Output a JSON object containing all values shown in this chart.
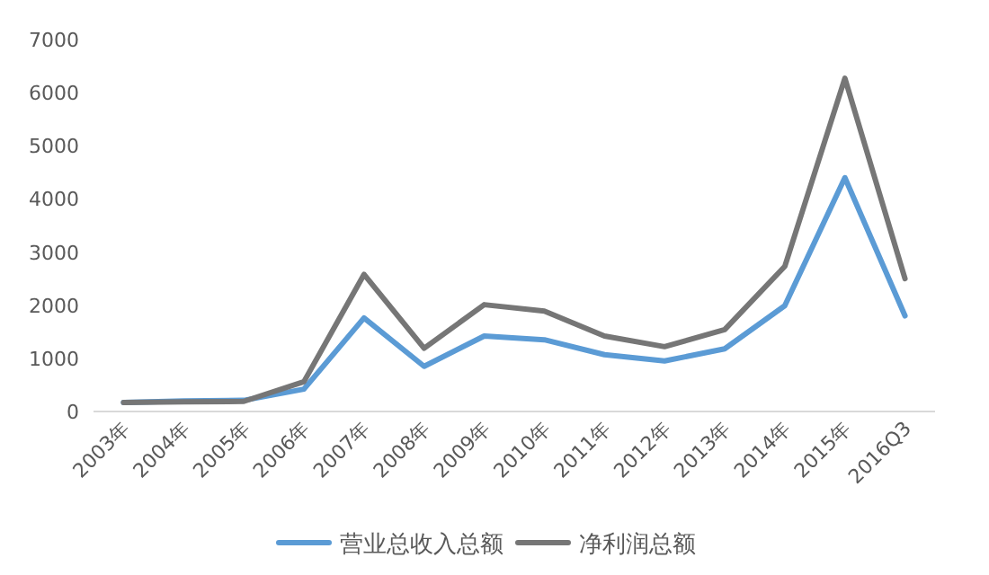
{
  "chart_data": {
    "type": "line",
    "categories": [
      "2003年",
      "2004年",
      "2005年",
      "2006年",
      "2007年",
      "2008年",
      "2009年",
      "2010年",
      "2011年",
      "2012年",
      "2013年",
      "2014年",
      "2015年",
      "2016Q3"
    ],
    "series": [
      {
        "name": "营业总收入总额",
        "color": "#5b9bd5",
        "values": [
          170,
          200,
          210,
          420,
          1760,
          850,
          1420,
          1350,
          1070,
          950,
          1180,
          1990,
          4400,
          1800
        ]
      },
      {
        "name": "净利润总额",
        "color": "#767676",
        "values": [
          170,
          180,
          190,
          560,
          2580,
          1190,
          2010,
          1890,
          1420,
          1220,
          1540,
          2730,
          6270,
          2500
        ]
      }
    ],
    "ylim": [
      0,
      7000
    ],
    "yticks": [
      0,
      1000,
      2000,
      3000,
      4000,
      5000,
      6000,
      7000
    ],
    "grid": false,
    "legend": "bottom",
    "marker": "none",
    "line_style": "solid"
  }
}
